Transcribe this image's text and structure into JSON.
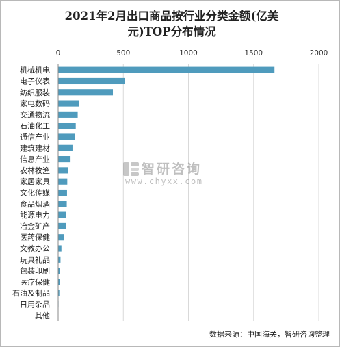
{
  "chart_data": {
    "type": "bar",
    "orientation": "horizontal",
    "title": "2021年2月出口商品按行业分类金额(亿美元)TOP分布情况",
    "xlim": [
      0,
      2000
    ],
    "xticks": [
      "0",
      "500",
      "1000",
      "1500",
      "2000"
    ],
    "xtick_values": [
      0,
      500,
      1000,
      1500,
      2000
    ],
    "grid": true,
    "categories": [
      "机械机电",
      "电子仪表",
      "纺织服装",
      "家电数码",
      "交通物流",
      "石油化工",
      "通信产业",
      "建筑建材",
      "信息产业",
      "农林牧渔",
      "家居家具",
      "文化传媒",
      "食品烟酒",
      "能源电力",
      "冶金矿产",
      "医药保健",
      "文教办公",
      "玩具礼品",
      "包装印刷",
      "医疗保健",
      "石油及制品",
      "日用杂品",
      "其他"
    ],
    "values": [
      1660,
      510,
      420,
      160,
      150,
      135,
      130,
      110,
      95,
      75,
      70,
      68,
      66,
      60,
      58,
      42,
      25,
      18,
      15,
      12,
      9,
      3,
      1
    ],
    "bar_color": "#4f9bbd"
  },
  "title_line1": "2021年2月出口商品按行业分类金额(亿美",
  "title_line2": "元)TOP分布情况",
  "source": "数据来源：中国海关，智研咨询整理",
  "watermark": {
    "name": "智研咨询",
    "url": "www.chyxx.com"
  },
  "colors": {
    "bar": "#4f9bbd",
    "grid": "#d9d9d9",
    "axis": "#888888"
  }
}
